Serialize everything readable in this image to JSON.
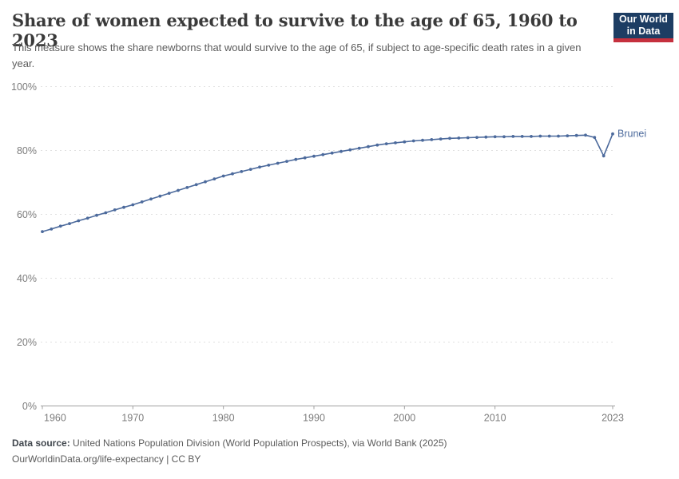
{
  "header": {
    "title": "Share of women expected to survive to the age of 65, 1960 to 2023",
    "subtitle": "This measure shows the share newborns that would survive to the age of 65, if subject to age-specific death rates in a given year.",
    "logo": {
      "line1": "Our World",
      "line2": "in Data"
    }
  },
  "chart_data": {
    "type": "line",
    "title": "Share of women expected to survive to the age of 65, 1960 to 2023",
    "xlabel": "",
    "ylabel": "",
    "xlim": [
      1960,
      2023
    ],
    "ylim": [
      0,
      100
    ],
    "ytick_values": [
      0,
      20,
      40,
      60,
      80,
      100
    ],
    "ytick_labels": [
      "0%",
      "20%",
      "40%",
      "60%",
      "80%",
      "100%"
    ],
    "xtick_values": [
      1960,
      1970,
      1980,
      1990,
      2000,
      2010,
      2023
    ],
    "xtick_labels": [
      "1960",
      "1970",
      "1980",
      "1990",
      "2000",
      "2010",
      "2023"
    ],
    "grid": "horizontal-dashed",
    "legend": "inline-end-label",
    "series": [
      {
        "name": "Brunei",
        "color": "#4c6a9c",
        "x": [
          1960,
          1961,
          1962,
          1963,
          1964,
          1965,
          1966,
          1967,
          1968,
          1969,
          1970,
          1971,
          1972,
          1973,
          1974,
          1975,
          1976,
          1977,
          1978,
          1979,
          1980,
          1981,
          1982,
          1983,
          1984,
          1985,
          1986,
          1987,
          1988,
          1989,
          1990,
          1991,
          1992,
          1993,
          1994,
          1995,
          1996,
          1997,
          1998,
          1999,
          2000,
          2001,
          2002,
          2003,
          2004,
          2005,
          2006,
          2007,
          2008,
          2009,
          2010,
          2011,
          2012,
          2013,
          2014,
          2015,
          2016,
          2017,
          2018,
          2019,
          2020,
          2021,
          2022,
          2023
        ],
        "values": [
          54.6,
          55.4,
          56.3,
          57.1,
          58.0,
          58.8,
          59.7,
          60.5,
          61.4,
          62.2,
          63.0,
          63.9,
          64.8,
          65.7,
          66.6,
          67.5,
          68.4,
          69.3,
          70.2,
          71.1,
          72.0,
          72.7,
          73.4,
          74.1,
          74.8,
          75.4,
          76.0,
          76.6,
          77.2,
          77.7,
          78.2,
          78.7,
          79.2,
          79.7,
          80.2,
          80.7,
          81.2,
          81.7,
          82.1,
          82.4,
          82.7,
          83.0,
          83.2,
          83.4,
          83.6,
          83.8,
          83.9,
          84.0,
          84.1,
          84.2,
          84.3,
          84.3,
          84.4,
          84.4,
          84.4,
          84.5,
          84.5,
          84.5,
          84.6,
          84.7,
          84.8,
          84.1,
          78.3,
          85.2
        ]
      }
    ]
  },
  "footer": {
    "datasource_label": "Data source:",
    "datasource_text": " United Nations Population Division (World Population Prospects), via World Bank (2025)",
    "attribution": "OurWorldinData.org/life-expectancy | CC BY"
  },
  "colors": {
    "line": "#4c6a9c",
    "grid": "#e0e0e0",
    "axis": "#a1a1a1",
    "tick_text": "#7c7c7c",
    "logo_bg": "#1d3d63",
    "logo_stripe": "#c5303e"
  }
}
